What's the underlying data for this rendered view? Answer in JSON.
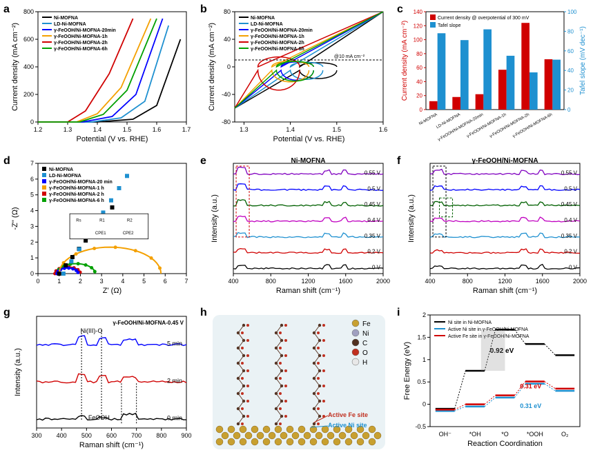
{
  "panels": {
    "a": {
      "label": "a",
      "xlabel": "Potential (V vs. RHE)",
      "ylabel": "Current density (mA cm⁻²)",
      "xlim": [
        1.2,
        1.7
      ],
      "xticks": [
        1.2,
        1.3,
        1.4,
        1.5,
        1.6,
        1.7
      ],
      "ylim": [
        0,
        800
      ],
      "yticks": [
        0,
        200,
        400,
        600,
        800
      ],
      "series": [
        {
          "name": "Ni-MOFNA",
          "color": "#000000",
          "data": [
            [
              1.2,
              0
            ],
            [
              1.4,
              0
            ],
            [
              1.52,
              20
            ],
            [
              1.6,
              120
            ],
            [
              1.68,
              600
            ]
          ]
        },
        {
          "name": "LD-Ni-MOFNA",
          "color": "#1e90d0",
          "data": [
            [
              1.2,
              0
            ],
            [
              1.38,
              0
            ],
            [
              1.48,
              30
            ],
            [
              1.56,
              150
            ],
            [
              1.64,
              700
            ]
          ]
        },
        {
          "name": "γ-FeOOH/Ni-MOFNA-20min",
          "color": "#0000ff",
          "data": [
            [
              1.2,
              0
            ],
            [
              1.35,
              0
            ],
            [
              1.45,
              40
            ],
            [
              1.53,
              200
            ],
            [
              1.62,
              750
            ]
          ]
        },
        {
          "name": "γ-FeOOH/Ni-MOFNA-1h",
          "color": "#f4a000",
          "data": [
            [
              1.2,
              0
            ],
            [
              1.33,
              0
            ],
            [
              1.4,
              60
            ],
            [
              1.48,
              250
            ],
            [
              1.58,
              750
            ]
          ]
        },
        {
          "name": "γ-FeOOH/Ni-MOFNA-2h",
          "color": "#d00000",
          "data": [
            [
              1.2,
              0
            ],
            [
              1.3,
              0
            ],
            [
              1.36,
              80
            ],
            [
              1.44,
              350
            ],
            [
              1.52,
              750
            ]
          ]
        },
        {
          "name": "γ-FeOOH/Ni-MOFNA-6h",
          "color": "#00a000",
          "data": [
            [
              1.2,
              0
            ],
            [
              1.34,
              0
            ],
            [
              1.42,
              55
            ],
            [
              1.5,
              230
            ],
            [
              1.6,
              750
            ]
          ]
        }
      ]
    },
    "b": {
      "label": "b",
      "xlabel": "Potential (V vs. RHE)",
      "ylabel": "Current density (mA cm⁻²)",
      "xlim": [
        1.28,
        1.6
      ],
      "xticks": [
        1.3,
        1.4,
        1.5,
        1.6
      ],
      "ylim": [
        -80,
        80
      ],
      "yticks": [
        -80,
        -40,
        0,
        40,
        80
      ],
      "anno": "@10 mA cm⁻²",
      "series": [
        {
          "name": "Ni-MOFNA",
          "color": "#000000"
        },
        {
          "name": "LD-Ni-MOFNA",
          "color": "#1e90d0"
        },
        {
          "name": "γ-FeOOH/Ni-MOFNA-20min",
          "color": "#0000ff"
        },
        {
          "name": "γ-FeOOH/Ni-MOFNA-1h",
          "color": "#f4a000"
        },
        {
          "name": "γ-FeOOH/Ni-MOFNA-2h",
          "color": "#d00000"
        },
        {
          "name": "γ-FeOOH/Ni-MOFNA-6h",
          "color": "#00a000"
        }
      ]
    },
    "c": {
      "label": "c",
      "ylabel_left": "Current density (mA cm⁻²)",
      "ylabel_right": "Tafel slope (mV dec⁻¹)",
      "left_color": "#d00000",
      "right_color": "#1e90d0",
      "legend1": "Current density @ overpotential of 300 mV",
      "legend2": "Tafel slope",
      "ylim_left": [
        0,
        140
      ],
      "yticks_left": [
        0,
        20,
        40,
        60,
        80,
        100,
        120,
        140
      ],
      "ylim_right": [
        0,
        100
      ],
      "yticks_right": [
        0,
        20,
        40,
        60,
        80,
        100
      ],
      "categories": [
        "Ni-MOFNA",
        "LD-Ni-MOFNA",
        "γ-FeOOH/Ni-MOFNA-20min",
        "γ-FeOOH/Ni-MOFNA-1h",
        "γ-FeOOH/Ni-MOFNA-2h",
        "γ-FeOOH/Ni-MOFNA-6h"
      ],
      "red": [
        12,
        18,
        22,
        57,
        124,
        72
      ],
      "blue": [
        78,
        71,
        82,
        55,
        38,
        51
      ]
    },
    "d": {
      "label": "d",
      "xlabel": "Z' (Ω)",
      "ylabel": "-Z'' (Ω)",
      "xlim": [
        0,
        7
      ],
      "xticks": [
        0,
        1,
        2,
        3,
        4,
        5,
        6,
        7
      ],
      "ylim": [
        0,
        7
      ],
      "yticks": [
        0,
        1,
        2,
        3,
        4,
        5,
        6,
        7
      ],
      "series": [
        {
          "name": "Ni-MOFNA",
          "color": "#000000",
          "marker": "s"
        },
        {
          "name": "LD-Ni-MOFNA",
          "color": "#1e90d0",
          "marker": "o"
        },
        {
          "name": "γ-FeOOH/Ni-MOFNA-20 min",
          "color": "#0000ff",
          "marker": "o"
        },
        {
          "name": "γ-FeOOH/Ni-MOFNA-1 h",
          "color": "#f4a000",
          "marker": "^"
        },
        {
          "name": "γ-FeOOH/Ni-MOFNA-2 h",
          "color": "#d00000",
          "marker": "o"
        },
        {
          "name": "γ-FeOOH/Ni-MOFNA-6 h",
          "color": "#00a000",
          "marker": "o"
        }
      ],
      "circuit": "Rs—[R1||CPE1]—[R2||CPE2]"
    },
    "e": {
      "label": "e",
      "title": "Ni-MOFNA",
      "xlabel": "Raman shift (cm⁻¹)",
      "ylabel": "Intensity (a.u.)",
      "xlim": [
        400,
        2000
      ],
      "xticks": [
        400,
        800,
        1200,
        1600,
        2000
      ],
      "voltages": [
        "0.55 V",
        "0.5 V",
        "0.45 V",
        "0.4 V",
        "0.35 V",
        "0.2 V",
        "0 V"
      ],
      "colors": [
        "#8000c0",
        "#0000ff",
        "#006000",
        "#c000c0",
        "#1e90d0",
        "#d00000",
        "#000000"
      ]
    },
    "f": {
      "label": "f",
      "title": "γ-FeOOH/Ni-MOFNA",
      "xlabel": "Raman shift (cm⁻¹)",
      "ylabel": "Intensity (a.u.)",
      "xlim": [
        400,
        2000
      ],
      "xticks": [
        400,
        800,
        1200,
        1600,
        2000
      ],
      "voltages": [
        "0.55 V",
        "0.5 V",
        "0.45 V",
        "0.4 V",
        "0.35 V",
        "0.2 V",
        "0 V"
      ],
      "colors": [
        "#8000c0",
        "#0000ff",
        "#006000",
        "#c000c0",
        "#1e90d0",
        "#d00000",
        "#000000"
      ]
    },
    "g": {
      "label": "g",
      "title": "γ-FeOOH/Ni-MOFNA-0.45 V",
      "xlabel": "Raman shift (cm⁻¹)",
      "ylabel": "Intensity (a.u.)",
      "xlim": [
        300,
        900
      ],
      "xticks": [
        300,
        400,
        500,
        600,
        700,
        800,
        900
      ],
      "times": [
        "5 min",
        "2 min",
        "0 min"
      ],
      "colors": [
        "#0000ff",
        "#d00000",
        "#000000"
      ],
      "anno_niiii": "Ni(III)-O",
      "anno_feooh": "FeOOH"
    },
    "h": {
      "label": "h",
      "items": [
        "Fe",
        "Ni",
        "C",
        "O",
        "H"
      ],
      "item_colors": [
        "#c8a030",
        "#a0a0c0",
        "#503020",
        "#c03020",
        "#e8e8e8"
      ],
      "anno_fe": "Active Fe site",
      "anno_ni": "Active Ni site",
      "anno_fe_color": "#c03020",
      "anno_ni_color": "#1e90d0",
      "bg": "#eaf2f5"
    },
    "i": {
      "label": "i",
      "xlabel": "Reaction Coordination",
      "ylabel": "Free Energy (eV)",
      "ylim": [
        -0.5,
        2
      ],
      "yticks": [
        -0.5,
        0,
        0.5,
        1,
        1.5,
        2
      ],
      "xcats": [
        "OH⁻",
        "*OH",
        "*O",
        "*OOH",
        "O₂"
      ],
      "series": [
        {
          "name": "Ni site in Ni-MOFNA",
          "color": "#000000",
          "vals": [
            -0.1,
            0.75,
            1.67,
            1.35,
            1.1
          ]
        },
        {
          "name": "Active Ni site in γ-FeOOH/Ni-MOFNA",
          "color": "#1e90d0",
          "vals": [
            -0.15,
            -0.05,
            0.15,
            0.46,
            0.3
          ]
        },
        {
          "name": "Active Fe site in γ-FeOOH/Ni-MOFNA",
          "color": "#d00000",
          "vals": [
            -0.12,
            0,
            0.2,
            0.51,
            0.35
          ]
        }
      ],
      "anno1": "0.92 eV",
      "anno2": "0.31 eV",
      "anno3": "0.31 eV"
    }
  }
}
